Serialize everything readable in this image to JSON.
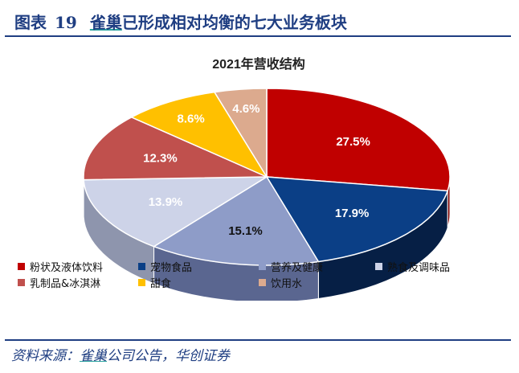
{
  "header": {
    "figure_label": "图表",
    "figure_number": "19",
    "title_brand": "雀巢",
    "title_rest": "已形成相对均衡的七大业务板块"
  },
  "source": {
    "label": "资料来源：",
    "brand": "雀巢",
    "rest": "公司公告，华创证券"
  },
  "chart_data": {
    "type": "pie",
    "title": "2021年营收结构",
    "legend_placement": "bottom",
    "slices": [
      {
        "name": "粉状及液体饮料",
        "value": 27.5,
        "label": "27.5%",
        "color": "#c00000",
        "side": "#7a0000",
        "text_color": "#ffffff"
      },
      {
        "name": "宠物食品",
        "value": 17.9,
        "label": "17.9%",
        "color": "#0b3f86",
        "side": "#061f45",
        "text_color": "#ffffff"
      },
      {
        "name": "营养及健康",
        "value": 15.1,
        "label": "15.1%",
        "color": "#8e9cc8",
        "side": "#5a6690",
        "text_color": "#111111"
      },
      {
        "name": "熟食及调味品",
        "value": 13.9,
        "label": "13.9%",
        "color": "#cdd3e8",
        "side": "#8e95ad",
        "text_color": "#ffffff"
      },
      {
        "name": "乳制品&冰淇淋",
        "value": 12.3,
        "label": "12.3%",
        "color": "#c0504d",
        "side": "#7d302e",
        "text_color": "#ffffff"
      },
      {
        "name": "甜食",
        "value": 8.6,
        "label": "8.6%",
        "color": "#ffc000",
        "side": "#b38600",
        "text_color": "#ffffff"
      },
      {
        "name": "饮用水",
        "value": 4.6,
        "label": "4.6%",
        "color": "#dcaa8e",
        "side": "#9c7560",
        "text_color": "#ffffff"
      }
    ]
  }
}
